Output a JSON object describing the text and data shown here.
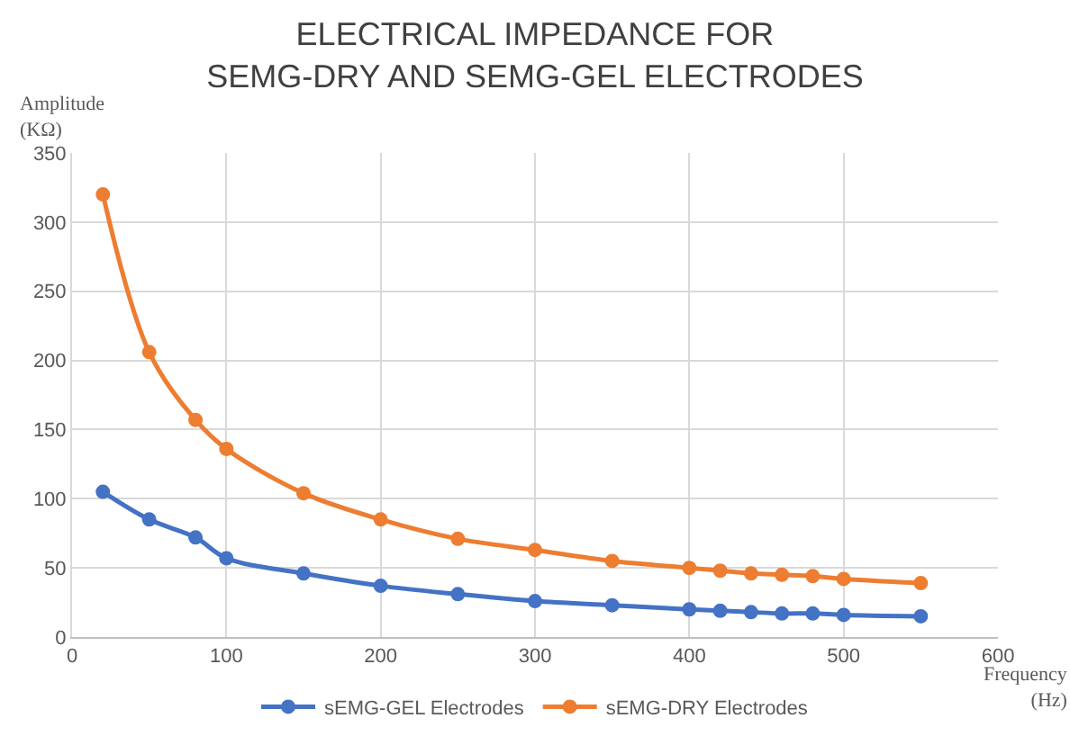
{
  "chart_data": {
    "type": "line",
    "title": "ELECTRICAL IMPEDANCE FOR\nSEMG-DRY AND SEMG-GEL ELECTRODES",
    "xlabel": "Frequency\n(Hz)",
    "ylabel": "Amplitude\n(KΩ)",
    "x": [
      20,
      50,
      80,
      100,
      150,
      200,
      250,
      300,
      350,
      400,
      420,
      440,
      460,
      480,
      500,
      550
    ],
    "series": [
      {
        "name": "sEMG-GEL Electrodes",
        "color": "#4472c4",
        "values": [
          105,
          85,
          72,
          57,
          46,
          37,
          31,
          26,
          23,
          20,
          19,
          18,
          17,
          17,
          16,
          15
        ]
      },
      {
        "name": "sEMG-DRY Electrodes",
        "color": "#ed7d31",
        "values": [
          320,
          206,
          157,
          136,
          104,
          85,
          71,
          63,
          55,
          50,
          48,
          46,
          45,
          44,
          42,
          39
        ]
      }
    ],
    "xlim": [
      0,
      600
    ],
    "xticks": [
      0,
      100,
      200,
      300,
      400,
      500,
      600
    ],
    "ylim": [
      0,
      350
    ],
    "yticks": [
      0,
      50,
      100,
      150,
      200,
      250,
      300,
      350
    ],
    "grid": true,
    "legend": "bottom",
    "marker": "circle",
    "line_style": "solid"
  }
}
